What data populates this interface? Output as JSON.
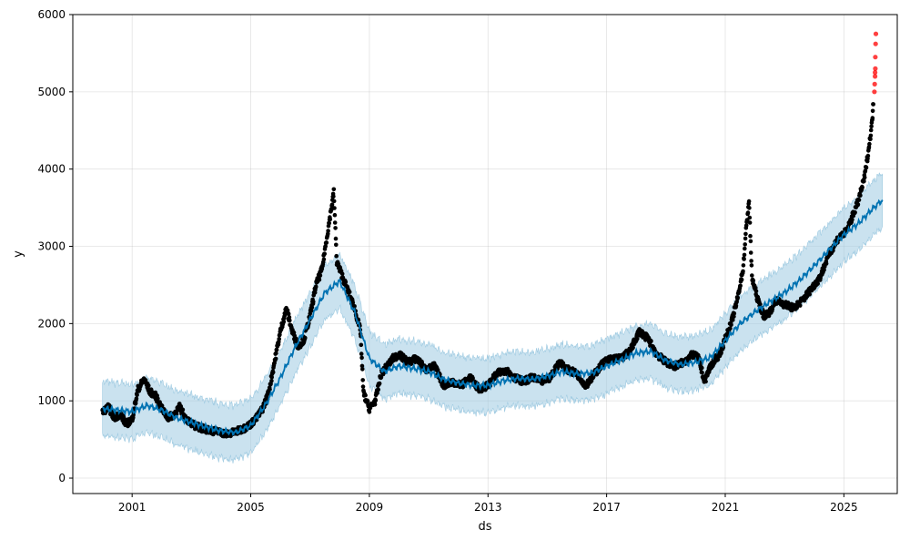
{
  "chart_data": {
    "type": "scatter",
    "title": "",
    "xlabel": "ds",
    "ylabel": "y",
    "xlim": [
      1999.0,
      2026.8
    ],
    "ylim": [
      -200,
      6000
    ],
    "grid": true,
    "x_ticks": [
      {
        "value": 2001,
        "label": "2001"
      },
      {
        "value": 2005,
        "label": "2005"
      },
      {
        "value": 2009,
        "label": "2009"
      },
      {
        "value": 2013,
        "label": "2013"
      },
      {
        "value": 2017,
        "label": "2017"
      },
      {
        "value": 2021,
        "label": "2021"
      },
      {
        "value": 2025,
        "label": "2025"
      }
    ],
    "y_ticks": [
      {
        "value": 0,
        "label": "0"
      },
      {
        "value": 1000,
        "label": "1000"
      },
      {
        "value": 2000,
        "label": "2000"
      },
      {
        "value": 3000,
        "label": "3000"
      },
      {
        "value": 4000,
        "label": "4000"
      },
      {
        "value": 5000,
        "label": "5000"
      },
      {
        "value": 6000,
        "label": "6000"
      }
    ],
    "colors": {
      "observed": "#000000",
      "outlier": "#ff0000",
      "forecast_line": "#0072B2",
      "uncertainty_band": "#9ecae1"
    },
    "observed_path": [
      [
        2000.0,
        850
      ],
      [
        2000.2,
        920
      ],
      [
        2000.4,
        780
      ],
      [
        2000.6,
        830
      ],
      [
        2000.8,
        700
      ],
      [
        2001.0,
        760
      ],
      [
        2001.2,
        1150
      ],
      [
        2001.4,
        1280
      ],
      [
        2001.6,
        1120
      ],
      [
        2001.8,
        1060
      ],
      [
        2002.0,
        900
      ],
      [
        2002.2,
        780
      ],
      [
        2002.4,
        820
      ],
      [
        2002.6,
        920
      ],
      [
        2002.8,
        780
      ],
      [
        2003.0,
        700
      ],
      [
        2003.3,
        650
      ],
      [
        2003.6,
        620
      ],
      [
        2003.9,
        600
      ],
      [
        2004.2,
        570
      ],
      [
        2004.5,
        600
      ],
      [
        2004.8,
        650
      ],
      [
        2005.0,
        700
      ],
      [
        2005.2,
        780
      ],
      [
        2005.4,
        900
      ],
      [
        2005.6,
        1100
      ],
      [
        2005.8,
        1500
      ],
      [
        2006.0,
        1900
      ],
      [
        2006.2,
        2200
      ],
      [
        2006.4,
        1900
      ],
      [
        2006.6,
        1700
      ],
      [
        2006.8,
        1800
      ],
      [
        2007.0,
        2100
      ],
      [
        2007.2,
        2500
      ],
      [
        2007.4,
        2700
      ],
      [
        2007.6,
        3200
      ],
      [
        2007.8,
        3700
      ],
      [
        2007.9,
        2800
      ],
      [
        2008.1,
        2600
      ],
      [
        2008.3,
        2400
      ],
      [
        2008.5,
        2200
      ],
      [
        2008.7,
        1900
      ],
      [
        2008.8,
        1100
      ],
      [
        2009.0,
        900
      ],
      [
        2009.2,
        1000
      ],
      [
        2009.4,
        1350
      ],
      [
        2009.6,
        1450
      ],
      [
        2009.8,
        1550
      ],
      [
        2010.0,
        1600
      ],
      [
        2010.3,
        1500
      ],
      [
        2010.6,
        1550
      ],
      [
        2010.9,
        1400
      ],
      [
        2011.2,
        1450
      ],
      [
        2011.5,
        1200
      ],
      [
        2011.8,
        1250
      ],
      [
        2012.1,
        1200
      ],
      [
        2012.4,
        1300
      ],
      [
        2012.7,
        1150
      ],
      [
        2013.0,
        1200
      ],
      [
        2013.3,
        1350
      ],
      [
        2013.6,
        1400
      ],
      [
        2013.9,
        1300
      ],
      [
        2014.2,
        1250
      ],
      [
        2014.5,
        1300
      ],
      [
        2014.8,
        1250
      ],
      [
        2015.1,
        1300
      ],
      [
        2015.4,
        1500
      ],
      [
        2015.7,
        1400
      ],
      [
        2016.0,
        1350
      ],
      [
        2016.3,
        1200
      ],
      [
        2016.6,
        1350
      ],
      [
        2016.9,
        1500
      ],
      [
        2017.2,
        1550
      ],
      [
        2017.5,
        1550
      ],
      [
        2017.8,
        1650
      ],
      [
        2018.1,
        1900
      ],
      [
        2018.4,
        1800
      ],
      [
        2018.7,
        1600
      ],
      [
        2019.0,
        1500
      ],
      [
        2019.3,
        1450
      ],
      [
        2019.6,
        1500
      ],
      [
        2019.9,
        1600
      ],
      [
        2020.1,
        1550
      ],
      [
        2020.3,
        1250
      ],
      [
        2020.5,
        1450
      ],
      [
        2020.8,
        1600
      ],
      [
        2021.0,
        1800
      ],
      [
        2021.2,
        2000
      ],
      [
        2021.4,
        2300
      ],
      [
        2021.6,
        2700
      ],
      [
        2021.7,
        3200
      ],
      [
        2021.8,
        3600
      ],
      [
        2021.9,
        2600
      ],
      [
        2022.1,
        2300
      ],
      [
        2022.3,
        2100
      ],
      [
        2022.5,
        2150
      ],
      [
        2022.7,
        2300
      ],
      [
        2023.0,
        2250
      ],
      [
        2023.3,
        2200
      ],
      [
        2023.6,
        2300
      ],
      [
        2023.9,
        2450
      ],
      [
        2024.2,
        2600
      ],
      [
        2024.5,
        2900
      ],
      [
        2024.8,
        3100
      ],
      [
        2025.1,
        3200
      ],
      [
        2025.3,
        3400
      ],
      [
        2025.5,
        3600
      ],
      [
        2025.7,
        3900
      ],
      [
        2025.85,
        4300
      ],
      [
        2025.95,
        4600
      ],
      [
        2026.0,
        4900
      ]
    ],
    "outliers": [
      [
        2026.03,
        5000
      ],
      [
        2026.04,
        5100
      ],
      [
        2026.05,
        5250
      ],
      [
        2026.06,
        5300
      ],
      [
        2026.07,
        5620
      ],
      [
        2026.08,
        5750
      ],
      [
        2026.06,
        5450
      ],
      [
        2026.05,
        5200
      ]
    ],
    "forecast": [
      [
        2000.0,
        900
      ],
      [
        2000.5,
        880
      ],
      [
        2001.0,
        860
      ],
      [
        2001.5,
        940
      ],
      [
        2002.0,
        880
      ],
      [
        2002.5,
        780
      ],
      [
        2003.0,
        720
      ],
      [
        2003.5,
        660
      ],
      [
        2004.0,
        610
      ],
      [
        2004.5,
        590
      ],
      [
        2005.0,
        680
      ],
      [
        2005.5,
        950
      ],
      [
        2006.0,
        1300
      ],
      [
        2006.5,
        1700
      ],
      [
        2007.0,
        2050
      ],
      [
        2007.5,
        2400
      ],
      [
        2008.0,
        2550
      ],
      [
        2008.5,
        2150
      ],
      [
        2009.0,
        1550
      ],
      [
        2009.5,
        1380
      ],
      [
        2010.0,
        1450
      ],
      [
        2010.5,
        1420
      ],
      [
        2011.0,
        1380
      ],
      [
        2011.5,
        1280
      ],
      [
        2012.0,
        1230
      ],
      [
        2012.5,
        1200
      ],
      [
        2013.0,
        1200
      ],
      [
        2013.5,
        1260
      ],
      [
        2014.0,
        1290
      ],
      [
        2014.5,
        1280
      ],
      [
        2015.0,
        1320
      ],
      [
        2015.5,
        1380
      ],
      [
        2016.0,
        1350
      ],
      [
        2016.5,
        1360
      ],
      [
        2017.0,
        1450
      ],
      [
        2017.5,
        1530
      ],
      [
        2018.0,
        1620
      ],
      [
        2018.5,
        1640
      ],
      [
        2019.0,
        1520
      ],
      [
        2019.5,
        1470
      ],
      [
        2020.0,
        1500
      ],
      [
        2020.5,
        1560
      ],
      [
        2021.0,
        1780
      ],
      [
        2021.5,
        2000
      ],
      [
        2022.0,
        2150
      ],
      [
        2022.5,
        2280
      ],
      [
        2023.0,
        2400
      ],
      [
        2023.5,
        2560
      ],
      [
        2024.0,
        2750
      ],
      [
        2024.5,
        2950
      ],
      [
        2025.0,
        3150
      ],
      [
        2025.5,
        3300
      ],
      [
        2026.0,
        3500
      ],
      [
        2026.3,
        3600
      ]
    ],
    "band_width": 350
  }
}
